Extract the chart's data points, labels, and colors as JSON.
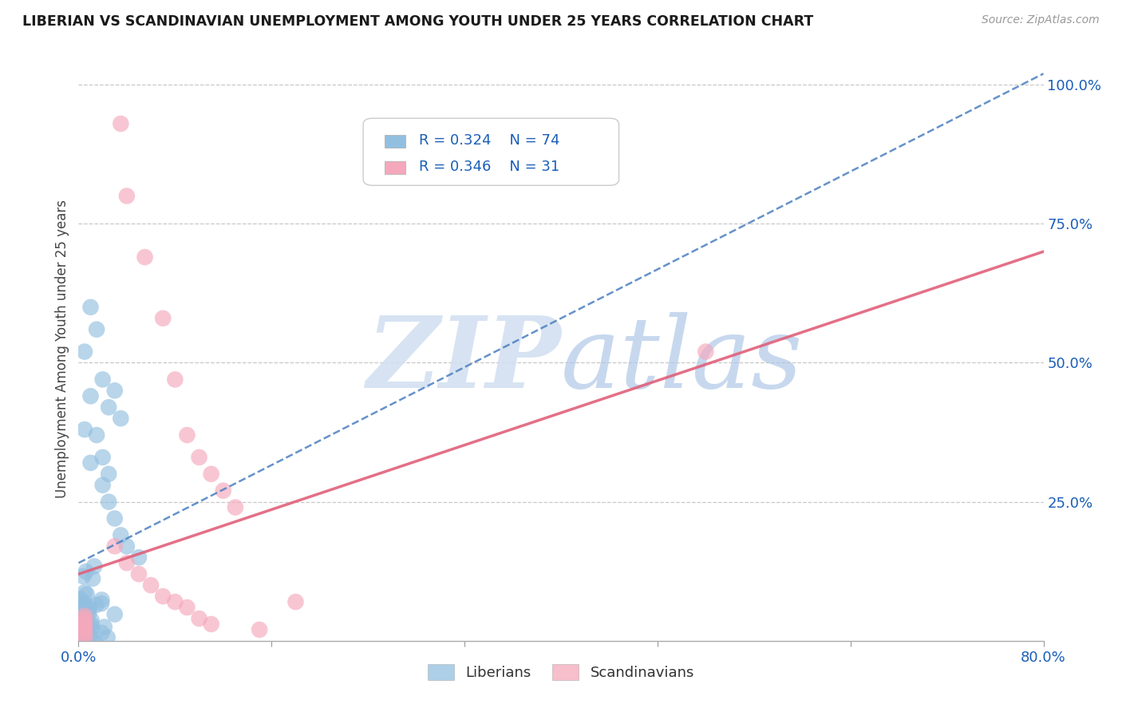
{
  "title": "LIBERIAN VS SCANDINAVIAN UNEMPLOYMENT AMONG YOUTH UNDER 25 YEARS CORRELATION CHART",
  "source": "Source: ZipAtlas.com",
  "ylabel": "Unemployment Among Youth under 25 years",
  "xlim": [
    0.0,
    0.8
  ],
  "ylim": [
    0.0,
    1.05
  ],
  "liberian_R": 0.324,
  "liberian_N": 74,
  "scandinavian_R": 0.346,
  "scandinavian_N": 31,
  "liberian_color": "#92bfe0",
  "scandinavian_color": "#f5a8bc",
  "liberian_line_color": "#4a7fc0",
  "scandinavian_line_color": "#e0607a",
  "watermark_color": "#d0dff0",
  "background_color": "#ffffff",
  "grid_color": "#c8c8c8",
  "title_color": "#1a1a1a",
  "tick_label_color": "#1a5eb8",
  "lib_line_x0": 0.0,
  "lib_line_y0": 0.14,
  "lib_line_x1": 0.8,
  "lib_line_y1": 1.02,
  "scan_line_x0": 0.0,
  "scan_line_y0": 0.12,
  "scan_line_x1": 0.8,
  "scan_line_y1": 0.7
}
